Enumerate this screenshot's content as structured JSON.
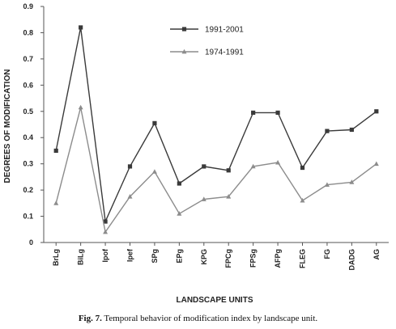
{
  "chart_data": {
    "type": "line",
    "categories": [
      "BrLg",
      "BiLg",
      "Ipof",
      "Ipef",
      "SPg",
      "EPg",
      "KPG",
      "FPCg",
      "FPSg",
      "AFPg",
      "FLEG",
      "FG",
      "DADG",
      "AG"
    ],
    "series": [
      {
        "name": "1991-2001",
        "color": "#3a3a3a",
        "marker": "square",
        "values": [
          0.35,
          0.82,
          0.08,
          0.29,
          0.455,
          0.225,
          0.29,
          0.275,
          0.495,
          0.495,
          0.285,
          0.425,
          0.43,
          0.5
        ]
      },
      {
        "name": "1974-1991",
        "color": "#8c8c8c",
        "marker": "triangle",
        "values": [
          0.15,
          0.515,
          0.04,
          0.175,
          0.27,
          0.11,
          0.165,
          0.175,
          0.29,
          0.305,
          0.16,
          0.22,
          0.23,
          0.3
        ]
      }
    ],
    "ylim": [
      0,
      0.9
    ],
    "yticks": [
      "0",
      "0.1",
      "0.2",
      "0.3",
      "0.4",
      "0.5",
      "0.6",
      "0.7",
      "0.8",
      "0.9"
    ],
    "xlabel": "LANDSCAPE UNITS",
    "ylabel": "DEGREES OF MODIFICATION",
    "legend_position": "top-right",
    "grid": false
  },
  "caption": {
    "label": "Fig. 7.",
    "text": " Temporal behavior of modification index by landscape unit."
  }
}
